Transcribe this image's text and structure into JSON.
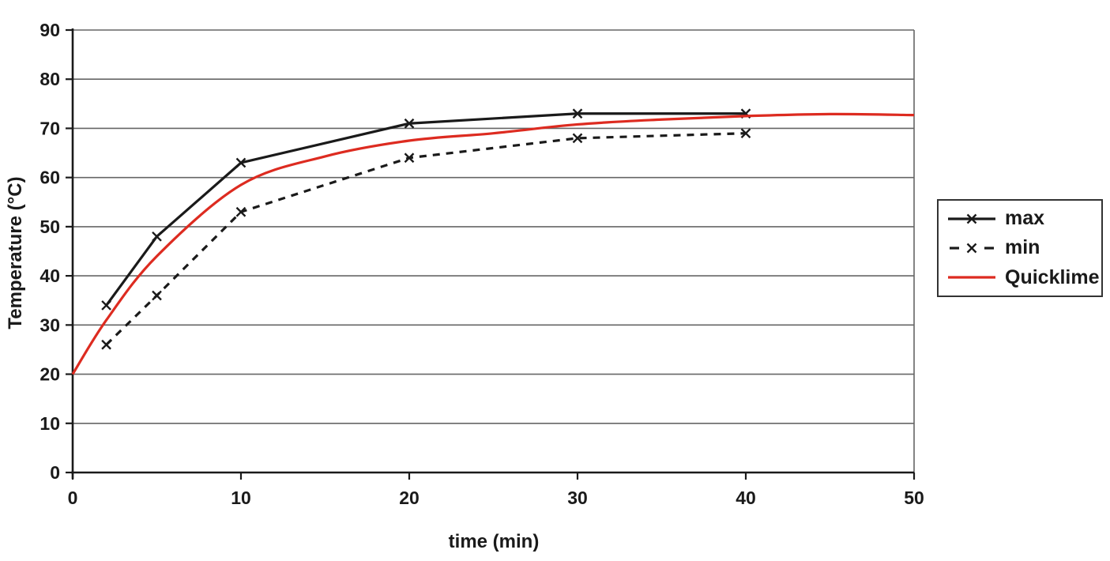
{
  "chart_data": {
    "type": "line",
    "title": "",
    "xlabel": "time (min)",
    "ylabel": "Temperature (°C)",
    "xlim": [
      0,
      50
    ],
    "ylim": [
      0,
      90
    ],
    "x_ticks": [
      0,
      10,
      20,
      30,
      40,
      50
    ],
    "y_ticks": [
      0,
      10,
      20,
      30,
      40,
      50,
      60,
      70,
      80,
      90
    ],
    "grid": "horizontal-only",
    "legend_position": "right-outside",
    "colors": {
      "axis": "#1a1a1a",
      "gridline": "#666666",
      "series_black": "#1a1a1a",
      "series_red": "#dd2b20",
      "legend_border": "#333333",
      "background": "#ffffff"
    },
    "series": [
      {
        "name": "max",
        "color": "#1a1a1a",
        "dash": "solid",
        "marker": "x",
        "smooth": false,
        "x": [
          2,
          5,
          10,
          20,
          30,
          40
        ],
        "y": [
          34,
          48,
          63,
          71,
          73,
          73
        ]
      },
      {
        "name": "min",
        "color": "#1a1a1a",
        "dash": "dashed",
        "marker": "x",
        "smooth": false,
        "x": [
          2,
          5,
          10,
          20,
          30,
          40
        ],
        "y": [
          26,
          36,
          53,
          64,
          68,
          69
        ]
      },
      {
        "name": "Quicklime",
        "color": "#dd2b20",
        "dash": "solid",
        "marker": "none",
        "smooth": true,
        "x": [
          0,
          2,
          5,
          10,
          15,
          20,
          25,
          30,
          35,
          40,
          45,
          50
        ],
        "y": [
          20,
          31,
          44,
          58.5,
          64.3,
          67.5,
          69,
          70.8,
          71.8,
          72.5,
          72.9,
          72.7
        ]
      }
    ]
  }
}
